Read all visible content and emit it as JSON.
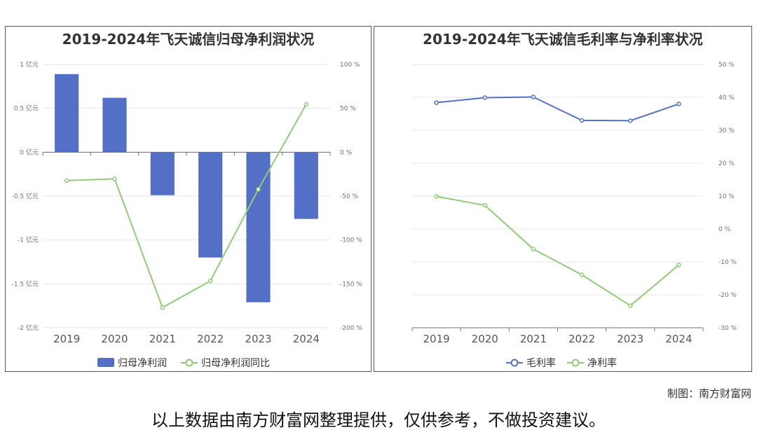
{
  "chart_data": [
    {
      "type": "bar+line",
      "title": "2019-2024年飞天诚信归母净利润状况",
      "categories": [
        "2019",
        "2020",
        "2021",
        "2022",
        "2023",
        "2024"
      ],
      "series": [
        {
          "name": "归母净利润",
          "type": "bar",
          "axis": "left",
          "unit": "亿元",
          "values": [
            0.89,
            0.62,
            -0.49,
            -1.2,
            -1.71,
            -0.76
          ],
          "color": "#5470c6"
        },
        {
          "name": "归母净利润同比",
          "type": "line",
          "axis": "right",
          "unit": "%",
          "values": [
            -32.3,
            -30.4,
            -177,
            -146.6,
            -42.3,
            54.5
          ],
          "color": "#91cc75"
        }
      ],
      "left_axis": {
        "ylim": [
          -2,
          1
        ],
        "ticks": [
          "1 亿元",
          "0.5 亿元",
          "0 亿元",
          "-0.5 亿元",
          "-1 亿元",
          "-1.5 亿元",
          "-2 亿元"
        ]
      },
      "right_axis": {
        "ylim": [
          -200,
          100
        ],
        "ticks": [
          "100 %",
          "50 %",
          "0 %",
          "-50 %",
          "-100 %",
          "-150 %",
          "-200 %"
        ]
      },
      "legend": "bottom",
      "grid": true
    },
    {
      "type": "line",
      "title": "2019-2024年飞天诚信毛利率与净利率状况",
      "categories": [
        "2019",
        "2020",
        "2021",
        "2022",
        "2023",
        "2024"
      ],
      "series": [
        {
          "name": "毛利率",
          "values": [
            38.4,
            39.9,
            40.1,
            33.0,
            32.9,
            38.0
          ],
          "color": "#5470c6"
        },
        {
          "name": "净利率",
          "values": [
            9.9,
            7.2,
            -6.1,
            -13.9,
            -23.3,
            -10.9
          ],
          "color": "#91cc75"
        }
      ],
      "right_axis": {
        "ylim": [
          -30,
          50
        ],
        "ticks": [
          "50 %",
          "40 %",
          "30 %",
          "20 %",
          "10 %",
          "0 %",
          "-10 %",
          "-20 %",
          "-30 %"
        ]
      },
      "legend": "bottom",
      "grid": true
    }
  ],
  "footer": {
    "credit": "制图：南方财富网",
    "disclaimer": "以上数据由南方财富网整理提供，仅供参考，不做投资建议。"
  }
}
